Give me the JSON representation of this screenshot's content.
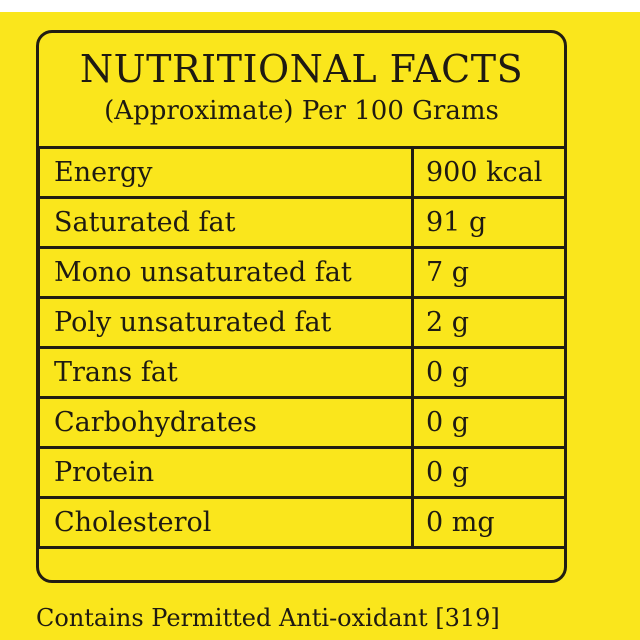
{
  "label": {
    "title": "NUTRITIONAL FACTS",
    "subtitle": "(Approximate) Per 100 Grams",
    "rows": [
      {
        "nutrient": "Energy",
        "value": "900 kcal"
      },
      {
        "nutrient": "Saturated fat",
        "value": "91 g"
      },
      {
        "nutrient": "Mono unsaturated fat",
        "value": "7 g"
      },
      {
        "nutrient": "Poly unsaturated fat",
        "value": "2 g"
      },
      {
        "nutrient": "Trans fat",
        "value": "0 g"
      },
      {
        "nutrient": "Carbohydrates",
        "value": "0 g"
      },
      {
        "nutrient": "Protein",
        "value": "0 g"
      },
      {
        "nutrient": "Cholesterol",
        "value": "0 mg"
      }
    ],
    "footer": "Contains Permitted Anti-oxidant [319]"
  },
  "colors": {
    "background": "#fae61c",
    "ink": "#221d12"
  }
}
